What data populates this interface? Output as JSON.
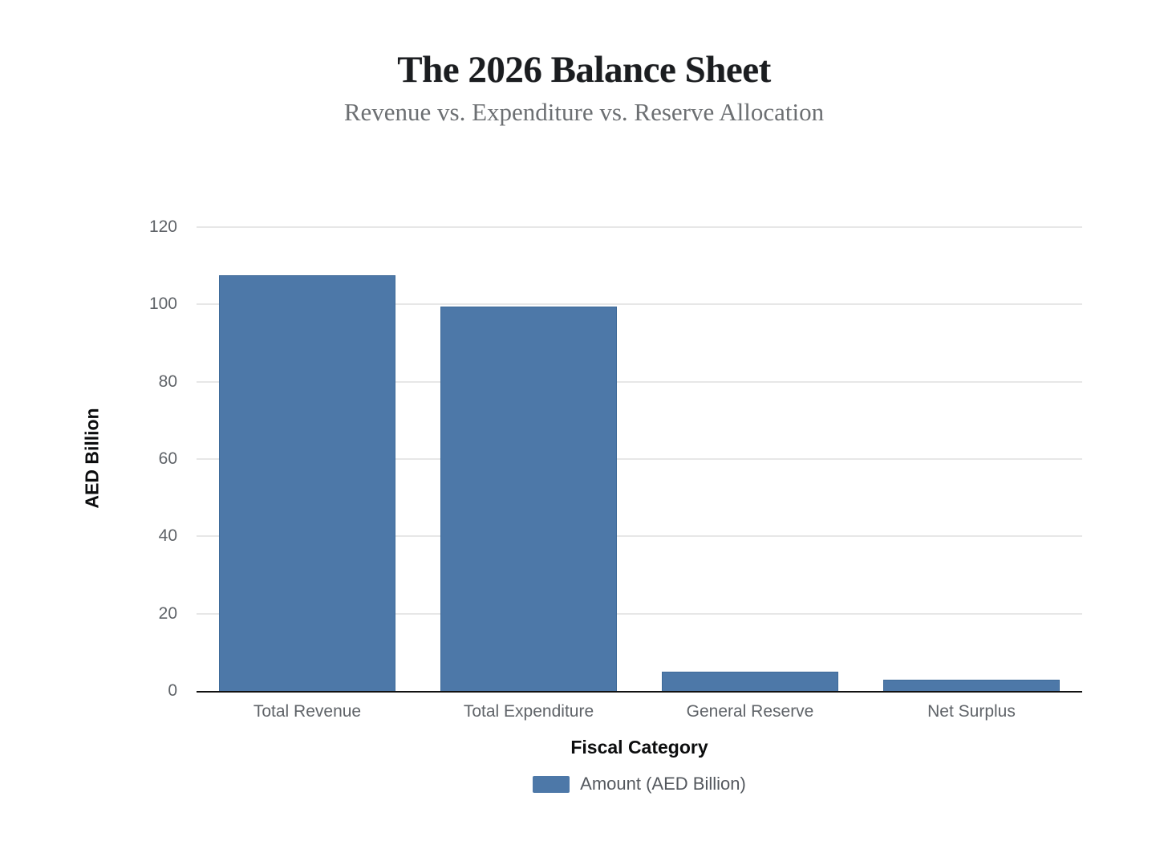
{
  "chart_data": {
    "type": "bar",
    "title": "The 2026 Balance Sheet",
    "subtitle": "Revenue vs. Expenditure vs. Reserve Allocation",
    "categories": [
      "Total Revenue",
      "Total Expenditure",
      "General Reserve",
      "Net Surplus"
    ],
    "values": [
      107.5,
      99.5,
      5,
      3
    ],
    "xlabel": "Fiscal Category",
    "ylabel": "AED Billion",
    "ylim": [
      0,
      120
    ],
    "yticks": [
      0,
      20,
      40,
      60,
      80,
      100,
      120
    ],
    "grid": "horizontal",
    "legend": {
      "position": "bottom",
      "label": "Amount (AED Billion)"
    },
    "colors": {
      "bar_fill": "#4d78a8",
      "bar_border": "#3e6a99",
      "gridline": "#e7e7e7",
      "axis_line": "#111111",
      "tick_text": "#5f6368",
      "title_text": "#1b1d20",
      "subtitle_text": "#6c6f72"
    }
  }
}
